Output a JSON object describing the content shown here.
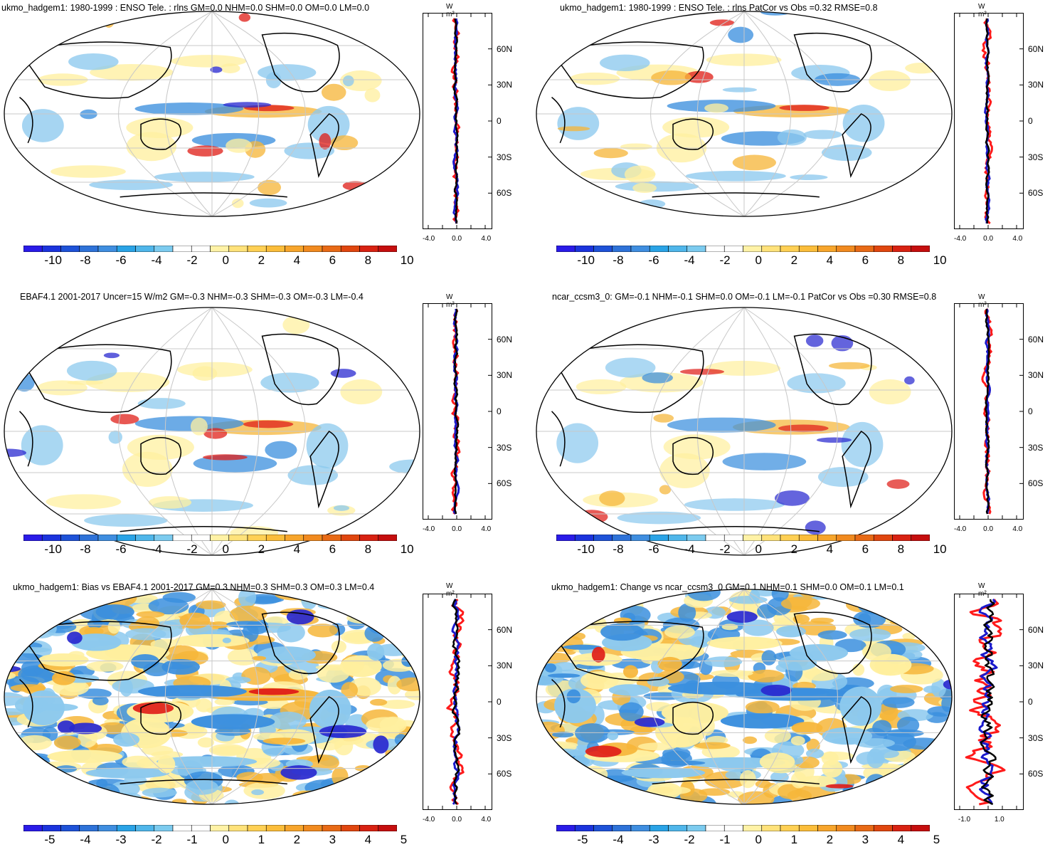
{
  "figure": {
    "units_label": "W m²",
    "lat_labels": [
      "60N",
      "30N",
      "0",
      "30S",
      "60S"
    ],
    "lat_values": [
      60,
      30,
      0,
      -30,
      -60
    ],
    "colors": {
      "ocean_bg": "#ffffff",
      "grid": "#c8c8c8",
      "coast": "#000000",
      "neg_strong": "#2a2ad0",
      "neg": "#3b8fde",
      "neg_light": "#8cc9ee",
      "pos_light": "#fff0a0",
      "pos": "#f6b63a",
      "pos_strong": "#e0201a",
      "line_red": "#ff1a1a",
      "line_blue": "#1a1acc",
      "line_black": "#000000"
    },
    "colorbar_colors": [
      "#2a1be8",
      "#1b33dd",
      "#1e52d8",
      "#2e72d8",
      "#3f8ee0",
      "#2aa3e6",
      "#4fb6ea",
      "#7ccbef",
      "#ffffff",
      "#ffffff",
      "#fff2a6",
      "#ffe27a",
      "#ffd054",
      "#fbbd3a",
      "#f7a52c",
      "#f18a1f",
      "#e86a16",
      "#e0460f",
      "#d82212",
      "#c50e0e"
    ],
    "cbar_labels_10": [
      "-10",
      "-8",
      "-6",
      "-4",
      "-2",
      "0",
      "2",
      "4",
      "6",
      "8",
      "10"
    ],
    "cbar_labels_5": [
      "-5",
      "-4",
      "-3",
      "-2",
      "-1",
      "0",
      "1",
      "2",
      "3",
      "4",
      "5"
    ]
  },
  "panels": [
    {
      "title": "ukmo_hadgem1: 1980-1999 : ENSO Tele. : rlns GM=0.0 NHM=0.0 SHM=0.0 OM=0.0 LM=0.0",
      "xticks": [
        "-4.0",
        "0.0",
        "4.0"
      ],
      "cbar": "10",
      "intensity": 0.55
    },
    {
      "title": "ukmo_hadgem1: 1980-1999 : ENSO Tele. : rlns PatCor vs Obs =0.32 RMSE=0.8",
      "xticks": [
        "-4.0",
        "0.0",
        "4.0"
      ],
      "cbar": "10",
      "intensity": 0.55
    },
    {
      "title": "EBAF4.1 2001-2017 Uncer=15 W/m2 GM=-0.3 NHM=-0.3 SHM=-0.3 OM=-0.3 LM=-0.4",
      "xticks": [
        "-4.0",
        "0.0",
        "4.0"
      ],
      "cbar": "10",
      "intensity": 0.5
    },
    {
      "title": "ncar_ccsm3_0: GM=-0.1 NHM=-0.1 SHM=0.0 OM=-0.1 LM=-0.1 PatCor vs Obs =0.30 RMSE=0.8",
      "xticks": [
        "-4.0",
        "0.0",
        "4.0"
      ],
      "cbar": "10",
      "intensity": 0.45
    },
    {
      "title": "ukmo_hadgem1: Bias vs EBAF4.1 2001-2017 GM=0.3 NHM=0.3 SHM=0.3 OM=0.3 LM=0.4",
      "xticks": [
        "-4.0",
        "0.0",
        "4.0"
      ],
      "cbar": "5",
      "intensity": 0.95
    },
    {
      "title": "ukmo_hadgem1: Change vs ncar_ccsm3_0 GM=0.1 NHM=0.1 SHM=0.0 OM=0.1 LM=0.1",
      "xticks": [
        "-1.0",
        "1.0"
      ],
      "cbar": "5",
      "intensity": 0.95
    }
  ]
}
